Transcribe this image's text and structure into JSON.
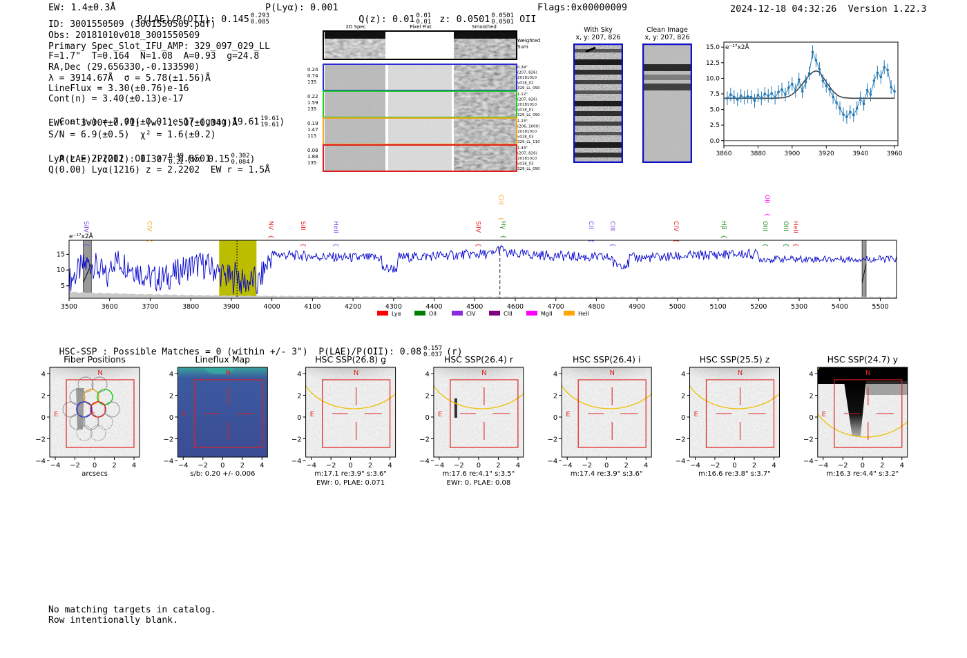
{
  "header": {
    "ew": "EW: 1.4±0.3Å",
    "plae": "P(LAE)/P(OII): 0.145",
    "plae_hi": "0.293",
    "plae_lo": "0.085",
    "plya": "P(Lyα): 0.001",
    "qz": "Q(z): 0.01",
    "qz_hi": "0.01",
    "qz_lo": "0.01",
    "z": "z: 0.0501",
    "z_hi": "0.0501",
    "z_lo": "0.0501",
    "z_line": "OII",
    "flags": "Flags:0x00000009",
    "timestamp": "2024-12-18 04:32:26  Version 1.22.3"
  },
  "info": {
    "lines": [
      "ID: 3001550509 (3001550509.pdf)",
      "Obs: 20181010v018_3001550509",
      "Primary Spec_Slot_IFU_AMP: 329_097_029_LL",
      "F=1.7\"  T=0.164  N=1.08  A=0.93  g=24.8",
      "RA,Dec (29.656330,-0.133590)",
      "λ = 3914.67Å  σ = 5.78(±1.56)Å",
      "LineFlux = 3.30(±0.76)e-16",
      "Cont(n) = 3.40(±0.13)e-17"
    ],
    "contw": "Cont(w) = 7.00(±0.01)e-17 (gmag 19.61",
    "contw_hi": "19.61",
    "contw_lo": "19.61",
    "contw_end": ")",
    "ewr": "EWr = 3.00(±0.71) (w: 1.50(±0.34))Å",
    "sn": "S/N = 6.9(±0.5)  χ² = 1.6(±0.2)",
    "plae2": "P(LAE)/P(OII): 0.307",
    "plae2_hi": "0.49",
    "plae2_lo": "0.22",
    "plae2_w": "(w: 0.15",
    "plae2_w_hi": "0.302",
    "plae2_w_lo": "0.084",
    "plae2_end": ")",
    "lya": "LyA z = 2.2202  OII z = 0.0501",
    "q": "Q(0.00) Lyα(1216) z = 2.2202  EW r = 1.5Å"
  },
  "cutouts": {
    "col_2d": "2D Spec",
    "col_flat": "Pixel Flat",
    "col_smooth": "Smoothed",
    "weighted": [
      "Weighted",
      "Sum"
    ],
    "rows": [
      {
        "nums": [
          "0.24",
          "0.74",
          "135"
        ],
        "meta": [
          "0.34\"",
          "(207, 826)",
          "20181010",
          "v018_02",
          "329_LL_090"
        ],
        "color": "#2b2bd6"
      },
      {
        "nums": [
          "0.22",
          "1.59",
          "135"
        ],
        "meta": [
          "1.12\"",
          "(207, 826)",
          "20181010",
          "v018_01",
          "329_LL_090"
        ],
        "color": "#22cc22"
      },
      {
        "nums": [
          "0.19",
          "1.47",
          "115"
        ],
        "meta": [
          "1.23\"",
          "(206, 1000)",
          "20181010",
          "v018_03",
          "329_LL_110"
        ],
        "color": "#f5a623"
      },
      {
        "nums": [
          "0.08",
          "1.88",
          "135"
        ],
        "meta": [
          "1.43\"",
          "(207, 826)",
          "20181010",
          "v018_03",
          "329_LL_090"
        ],
        "color": "#e02020"
      }
    ],
    "with_sky": [
      "With Sky",
      "x, y: 207, 826"
    ],
    "clean": [
      "Clean Image",
      "x, y: 207, 826"
    ]
  },
  "zoom_chart": {
    "type": "line",
    "unit": "e⁻¹⁷x2Å",
    "xlim": [
      3860,
      3962
    ],
    "ylim": [
      -0.8,
      15.8
    ],
    "xticks": [
      3860,
      3880,
      3900,
      3920,
      3940,
      3960
    ],
    "yticks": [
      0.0,
      2.5,
      5.0,
      7.5,
      10.0,
      12.5,
      15.0
    ],
    "data_x": [
      3862,
      3864,
      3866,
      3868,
      3870,
      3872,
      3874,
      3876,
      3878,
      3880,
      3882,
      3884,
      3886,
      3888,
      3890,
      3892,
      3894,
      3896,
      3898,
      3900,
      3902,
      3904,
      3906,
      3908,
      3910,
      3912,
      3914,
      3916,
      3918,
      3920,
      3922,
      3924,
      3926,
      3928,
      3930,
      3932,
      3934,
      3936,
      3938,
      3940,
      3942,
      3944,
      3946,
      3948,
      3950,
      3952,
      3954,
      3956,
      3958,
      3960
    ],
    "data_y": [
      6.8,
      7.4,
      7.0,
      6.6,
      7.2,
      6.9,
      7.1,
      7.0,
      6.4,
      7.3,
      6.8,
      7.5,
      7.2,
      7.6,
      6.9,
      7.8,
      8.2,
      7.4,
      8.5,
      9.1,
      8.0,
      9.8,
      7.9,
      9.4,
      10.8,
      14.2,
      12.9,
      11.5,
      9.6,
      8.8,
      8.2,
      7.0,
      6.1,
      5.2,
      4.2,
      3.8,
      4.6,
      4.1,
      5.2,
      6.8,
      5.9,
      8.1,
      7.4,
      9.6,
      10.9,
      10.2,
      11.8,
      11.3,
      8.6,
      7.9
    ],
    "model_x": [
      3860,
      3890,
      3895,
      3898,
      3900,
      3903,
      3906,
      3909,
      3912,
      3914,
      3916,
      3918,
      3921,
      3924,
      3927,
      3930,
      3935,
      3960
    ],
    "model_y": [
      6.8,
      6.8,
      6.9,
      7.1,
      7.4,
      8.1,
      9.1,
      10.2,
      11.0,
      11.2,
      11.0,
      10.2,
      9.0,
      7.9,
      7.2,
      6.9,
      6.8,
      6.8
    ],
    "series_color": "#1f77b4",
    "model_color": "#444444"
  },
  "spectrum": {
    "type": "line",
    "unit": "e⁻¹⁷x2Å",
    "xlim": [
      3500,
      5540
    ],
    "ylim": [
      1,
      19.5
    ],
    "xticks": [
      3500,
      3600,
      3700,
      3800,
      3900,
      4000,
      4100,
      4200,
      4300,
      4400,
      4500,
      4600,
      4700,
      4800,
      4900,
      5000,
      5100,
      5200,
      5300,
      5400,
      5500
    ],
    "yticks": [
      5,
      10,
      15
    ],
    "highlight": [
      3870,
      3962
    ],
    "dotted_line": 3914,
    "dashed_line": 4562,
    "masks": [
      [
        3535,
        3555
      ],
      [
        5455,
        5465
      ]
    ],
    "color": "#0000cc",
    "lines": [
      {
        "label": "SiIV",
        "x": 3532,
        "color": "#7b3fe4",
        "high": false
      },
      {
        "label": "CIV",
        "x": 3688,
        "color": "#f5a623",
        "high": false
      },
      {
        "label": "NV",
        "x": 3988,
        "color": "#e02020",
        "high": false
      },
      {
        "label": "SiII",
        "x": 4067,
        "color": "#e02020",
        "high": false
      },
      {
        "label": "HeII",
        "x": 4148,
        "color": "#7b3fe4",
        "high": false
      },
      {
        "label": "SiIV",
        "x": 4499,
        "color": "#e02020",
        "high": false
      },
      {
        "label": "CIII",
        "x": 4555,
        "color": "#f5a623",
        "high": true
      },
      {
        "label": "Hγ",
        "x": 4561,
        "color": "#1a8a1a",
        "high": false
      },
      {
        "label": "CII",
        "x": 4777,
        "color": "#7b3fe4",
        "high": false
      },
      {
        "label": "CIII",
        "x": 4830,
        "color": "#7b3fe4",
        "high": false
      },
      {
        "label": "CIV",
        "x": 4987,
        "color": "#e02020",
        "high": false
      },
      {
        "label": "Hβ",
        "x": 5104,
        "color": "#1a8a1a",
        "high": false
      },
      {
        "label": "OII",
        "x": 5211,
        "color": "#ff00ff",
        "high": true
      },
      {
        "label": "OIII",
        "x": 5206,
        "color": "#1a8a1a",
        "high": false
      },
      {
        "label": "OIII",
        "x": 5257,
        "color": "#1a8a1a",
        "high": false
      },
      {
        "label": "HeII",
        "x": 5281,
        "color": "#e02020",
        "high": false
      }
    ],
    "legend": [
      {
        "label": "Lyα",
        "color": "#ff0000"
      },
      {
        "label": "OII",
        "color": "#008000"
      },
      {
        "label": "CIV",
        "color": "#8a2be2"
      },
      {
        "label": "CIII",
        "color": "#800080"
      },
      {
        "label": "MgII",
        "color": "#ff00ff"
      },
      {
        "label": "HeII",
        "color": "#ffa500"
      }
    ]
  },
  "hsc": {
    "title": "HSC-SSP : Possible Matches = 0 (within +/- 3\")  P(LAE)/P(OII): 0.08",
    "title_hi": "0.157",
    "title_lo": "0.037",
    "title_end": "(r)",
    "compass_n": "N",
    "compass_e": "E",
    "xticks": [
      "−4",
      "−2",
      "0",
      "2",
      "4"
    ],
    "yticks": [
      "4",
      "2",
      "0",
      "−2",
      "−4"
    ],
    "panels": [
      {
        "title": "Fiber Positions",
        "caption": [
          "arcsecs"
        ],
        "kind": "fiber"
      },
      {
        "title": "Lineflux Map",
        "caption": [
          "s/b: 0.20 +/- 0.006"
        ],
        "kind": "flux"
      },
      {
        "title": "HSC SSP(26.8) g",
        "caption": [
          "m:17.1  re:3.9\"  s:3.6\"",
          "EWr: 0, PLAE: 0.071"
        ],
        "kind": "g"
      },
      {
        "title": "HSC SSP(26.4) r",
        "caption": [
          "m:17.6  re:4.1\"  s:3.5\"",
          "EWr: 0, PLAE: 0.08"
        ],
        "kind": "r"
      },
      {
        "title": "HSC SSP(26.4) i",
        "caption": [
          "m:17.4  re:3.9\"  s:3.6\""
        ],
        "kind": "i"
      },
      {
        "title": "HSC SSP(25.5) z",
        "caption": [
          "m:16.6  re:3.8\"  s:3.7\""
        ],
        "kind": "z"
      },
      {
        "title": "HSC SSP(24.7) y",
        "caption": [
          "m:16.3  re:4.4\"  s:3.2\""
        ],
        "kind": "y"
      }
    ]
  },
  "footer": {
    "line1": "No matching targets in catalog.",
    "line2": "Row intentionally blank."
  }
}
